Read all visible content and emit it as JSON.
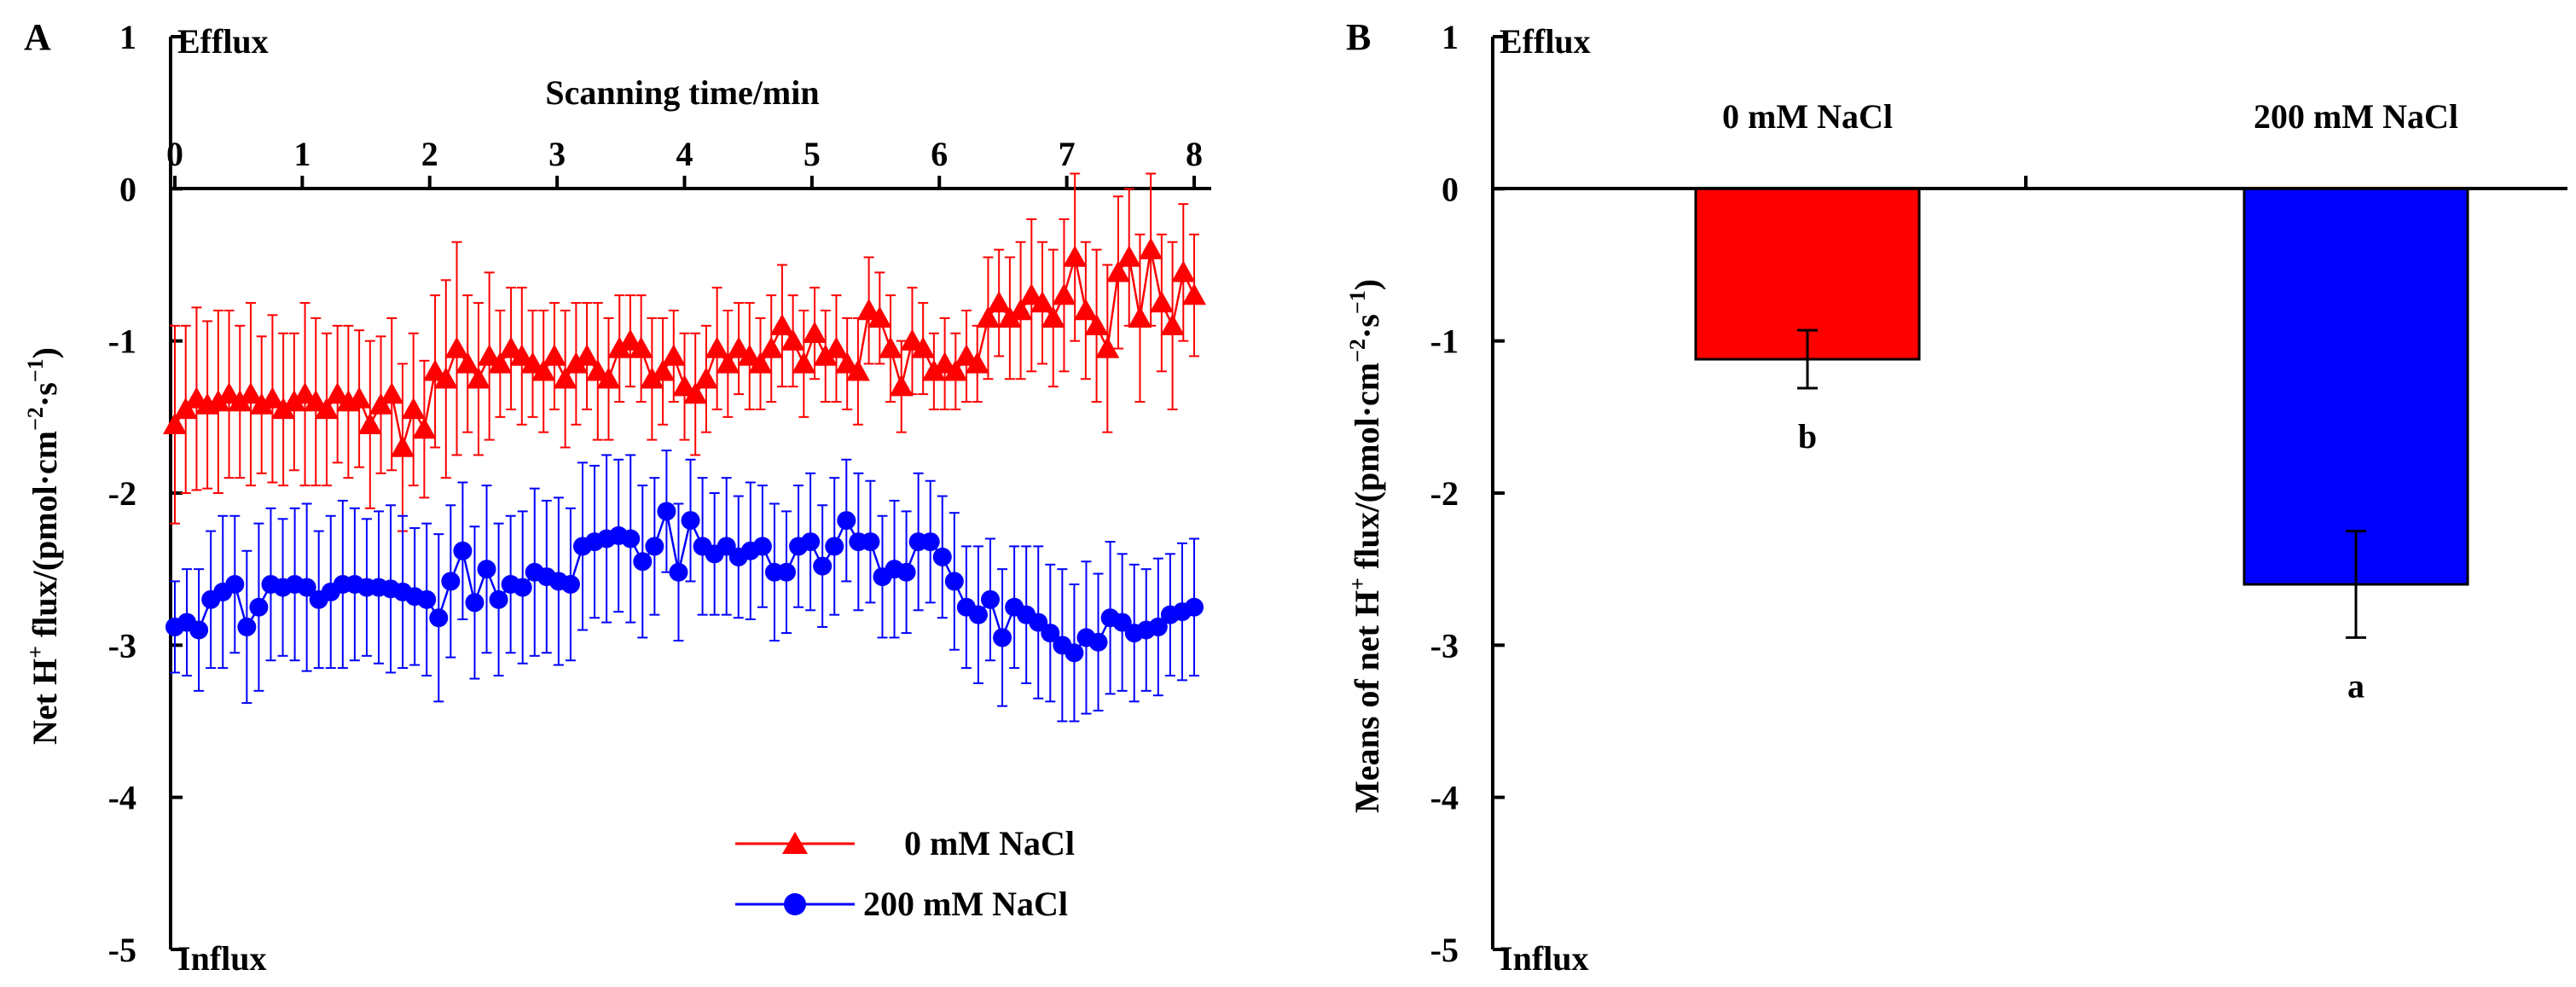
{
  "chart_data": [
    {
      "panel": "A",
      "type": "line",
      "title": "",
      "xlabel": "Scanning time/min",
      "ylabel_main": "Net H",
      "ylabel_sup": "+",
      "ylabel_rest": " flux/(pmol·cm",
      "ylabel_sup2": "−2",
      "ylabel_mid": "·s",
      "ylabel_sup3": "−1",
      "ylabel_end": ")",
      "xlim": [
        0,
        8
      ],
      "ylim": [
        -5,
        1
      ],
      "x_ticks": [
        "0",
        "1",
        "2",
        "3",
        "4",
        "5",
        "6",
        "7",
        "8"
      ],
      "y_ticks": [
        "1",
        "0",
        "-1",
        "-2",
        "-3",
        "-4",
        "-5"
      ],
      "top_label": "Efflux",
      "bottom_label": "Influx",
      "legend_position": "bottom-right",
      "series": [
        {
          "name": "0 mM NaCl",
          "color": "#ff0000",
          "marker": "triangle",
          "y": [
            -1.55,
            -1.45,
            -1.38,
            -1.42,
            -1.4,
            -1.35,
            -1.4,
            -1.35,
            -1.42,
            -1.38,
            -1.45,
            -1.4,
            -1.35,
            -1.4,
            -1.45,
            -1.35,
            -1.4,
            -1.38,
            -1.55,
            -1.42,
            -1.35,
            -1.7,
            -1.45,
            -1.58,
            -1.2,
            -1.25,
            -1.05,
            -1.15,
            -1.25,
            -1.1,
            -1.15,
            -1.05,
            -1.1,
            -1.15,
            -1.2,
            -1.1,
            -1.25,
            -1.15,
            -1.1,
            -1.2,
            -1.25,
            -1.05,
            -1.0,
            -1.05,
            -1.25,
            -1.2,
            -1.1,
            -1.3,
            -1.35,
            -1.25,
            -1.05,
            -1.15,
            -1.05,
            -1.1,
            -1.15,
            -1.05,
            -0.9,
            -1.0,
            -1.15,
            -0.95,
            -1.1,
            -1.05,
            -1.15,
            -1.2,
            -0.8,
            -0.85,
            -1.05,
            -1.3,
            -1.0,
            -1.05,
            -1.2,
            -1.15,
            -1.2,
            -1.1,
            -1.15,
            -0.85,
            -0.75,
            -0.85,
            -0.8,
            -0.7,
            -0.75,
            -0.85,
            -0.7,
            -0.45,
            -0.8,
            -0.9,
            -1.05,
            -0.55,
            -0.45,
            -0.85,
            -0.4,
            -0.75,
            -0.9,
            -0.55,
            -0.7
          ],
          "err": [
            0.65,
            0.55,
            0.6,
            0.55,
            0.6,
            0.55,
            0.5,
            0.6,
            0.45,
            0.55,
            0.5,
            0.45,
            0.6,
            0.55,
            0.5,
            0.45,
            0.5,
            0.45,
            0.55,
            0.45,
            0.5,
            0.55,
            0.5,
            0.45,
            0.5,
            0.65,
            0.7,
            0.45,
            0.5,
            0.55,
            0.35,
            0.4,
            0.45,
            0.35,
            0.4,
            0.35,
            0.45,
            0.4,
            0.35,
            0.45,
            0.4,
            0.35,
            0.3,
            0.35,
            0.4,
            0.35,
            0.3,
            0.35,
            0.4,
            0.35,
            0.4,
            0.35,
            0.3,
            0.35,
            0.3,
            0.35,
            0.4,
            0.3,
            0.35,
            0.3,
            0.3,
            0.35,
            0.3,
            0.35,
            0.35,
            0.3,
            0.35,
            0.3,
            0.35,
            0.3,
            0.25,
            0.3,
            0.25,
            0.3,
            0.25,
            0.4,
            0.35,
            0.4,
            0.45,
            0.5,
            0.4,
            0.45,
            0.5,
            0.55,
            0.45,
            0.5,
            0.55,
            0.5,
            0.45,
            0.55,
            0.5,
            0.45,
            0.55,
            0.45,
            0.4
          ]
        },
        {
          "name": "200 mM NaCl",
          "color": "#0000ff",
          "marker": "circle",
          "y": [
            -2.88,
            -2.85,
            -2.9,
            -2.7,
            -2.65,
            -2.6,
            -2.88,
            -2.75,
            -2.6,
            -2.62,
            -2.6,
            -2.62,
            -2.7,
            -2.65,
            -2.6,
            -2.6,
            -2.62,
            -2.62,
            -2.63,
            -2.65,
            -2.68,
            -2.7,
            -2.82,
            -2.58,
            -2.38,
            -2.72,
            -2.5,
            -2.7,
            -2.6,
            -2.62,
            -2.52,
            -2.55,
            -2.58,
            -2.6,
            -2.35,
            -2.32,
            -2.3,
            -2.28,
            -2.3,
            -2.45,
            -2.35,
            -2.12,
            -2.52,
            -2.18,
            -2.35,
            -2.4,
            -2.35,
            -2.42,
            -2.38,
            -2.35,
            -2.52,
            -2.52,
            -2.35,
            -2.32,
            -2.48,
            -2.35,
            -2.18,
            -2.32,
            -2.32,
            -2.55,
            -2.5,
            -2.52,
            -2.32,
            -2.32,
            -2.42,
            -2.58,
            -2.75,
            -2.8,
            -2.7,
            -2.95,
            -2.75,
            -2.8,
            -2.85,
            -2.92,
            -3.0,
            -3.05,
            -2.95,
            -2.98,
            -2.82,
            -2.85,
            -2.92,
            -2.9,
            -2.88,
            -2.8,
            -2.78,
            -2.75
          ],
          "err": [
            0.3,
            0.35,
            0.4,
            0.45,
            0.5,
            0.45,
            0.5,
            0.55,
            0.5,
            0.45,
            0.5,
            0.55,
            0.45,
            0.5,
            0.55,
            0.5,
            0.45,
            0.5,
            0.55,
            0.5,
            0.45,
            0.5,
            0.55,
            0.5,
            0.45,
            0.5,
            0.55,
            0.5,
            0.45,
            0.5,
            0.55,
            0.5,
            0.55,
            0.5,
            0.55,
            0.5,
            0.55,
            0.5,
            0.55,
            0.5,
            0.45,
            0.4,
            0.45,
            0.4,
            0.45,
            0.4,
            0.45,
            0.4,
            0.45,
            0.4,
            0.45,
            0.4,
            0.4,
            0.45,
            0.4,
            0.45,
            0.4,
            0.45,
            0.4,
            0.4,
            0.45,
            0.4,
            0.45,
            0.4,
            0.4,
            0.45,
            0.4,
            0.45,
            0.4,
            0.45,
            0.4,
            0.45,
            0.5,
            0.45,
            0.5,
            0.45,
            0.5,
            0.45,
            0.5,
            0.45,
            0.45,
            0.4,
            0.45,
            0.4,
            0.45,
            0.45
          ]
        }
      ]
    },
    {
      "panel": "B",
      "type": "bar",
      "title": "",
      "ylabel_main": "Means of net H",
      "ylabel_sup": "+",
      "ylabel_rest": " flux/(pmol·cm",
      "ylabel_sup2": "−2",
      "ylabel_mid": "·s",
      "ylabel_sup3": "−1",
      "ylabel_end": ")",
      "ylim": [
        -5,
        1
      ],
      "y_ticks": [
        "1",
        "0",
        "-1",
        "-2",
        "-3",
        "-4",
        "-5"
      ],
      "top_label": "Efflux",
      "bottom_label": "Influx",
      "categories": [
        "0 mM NaCl",
        "200 mM NaCl"
      ],
      "values": [
        -1.12,
        -2.6
      ],
      "errors": [
        0.19,
        0.35
      ],
      "colors": [
        "#ff0000",
        "#0000ff"
      ],
      "significance": [
        "b",
        "a"
      ]
    }
  ]
}
